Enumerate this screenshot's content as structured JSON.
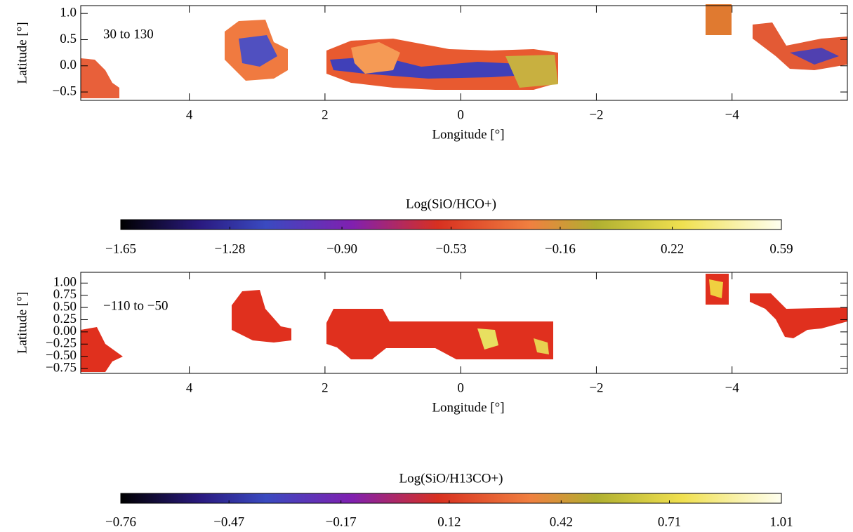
{
  "chart_data": [
    {
      "type": "map",
      "annotation": "30 to 130",
      "xlabel": "Longitude [°]",
      "ylabel": "Latitude [°]",
      "xlim": [
        5.6,
        -5.7
      ],
      "xticks": [
        4,
        2,
        0,
        {
          "value": -2,
          "label": "−2"
        },
        {
          "value": -4,
          "label": "−4"
        }
      ],
      "ylim": [
        -0.66,
        1.15
      ],
      "yticks": [
        {
          "value": 1.0,
          "label": "1.0"
        },
        {
          "value": 0.5,
          "label": "0.5"
        },
        {
          "value": 0.0,
          "label": "0.0"
        },
        {
          "value": -0.5,
          "label": "−0.5"
        }
      ]
    },
    {
      "type": "colorbar",
      "title": "Log(SiO/HCO+)",
      "xlim": [
        -1.65,
        0.59
      ],
      "xticks": [
        {
          "value": -1.65,
          "label": "−1.65"
        },
        {
          "value": -1.28,
          "label": "−1.28"
        },
        {
          "value": -0.9,
          "label": "−0.90"
        },
        {
          "value": -0.53,
          "label": "−0.53"
        },
        {
          "value": -0.16,
          "label": "−0.16"
        },
        0.22,
        0.59
      ]
    },
    {
      "type": "map",
      "annotation": "−110 to −50",
      "xlabel": "Longitude [°]",
      "ylabel": "Latitude [°]",
      "xlim": [
        5.6,
        -5.7
      ],
      "xticks": [
        4,
        2,
        0,
        {
          "value": -2,
          "label": "−2"
        },
        {
          "value": -4,
          "label": "−4"
        }
      ],
      "ylim": [
        -0.85,
        1.22
      ],
      "yticks": [
        {
          "value": 1.0,
          "label": "1.00"
        },
        {
          "value": 0.75,
          "label": "0.75"
        },
        {
          "value": 0.5,
          "label": "0.50"
        },
        {
          "value": 0.25,
          "label": "0.25"
        },
        {
          "value": 0.0,
          "label": "0.00"
        },
        {
          "value": -0.25,
          "label": "−0.25"
        },
        {
          "value": -0.5,
          "label": "−0.50"
        },
        {
          "value": -0.75,
          "label": "−0.75"
        }
      ]
    },
    {
      "type": "colorbar",
      "title": "Log(SiO/H13CO+)",
      "xlim": [
        -0.76,
        1.01
      ],
      "xticks": [
        {
          "value": -0.76,
          "label": "−0.76"
        },
        {
          "value": -0.47,
          "label": "−0.47"
        },
        {
          "value": -0.17,
          "label": "−0.17"
        },
        0.12,
        0.42,
        0.71,
        1.01
      ]
    }
  ]
}
